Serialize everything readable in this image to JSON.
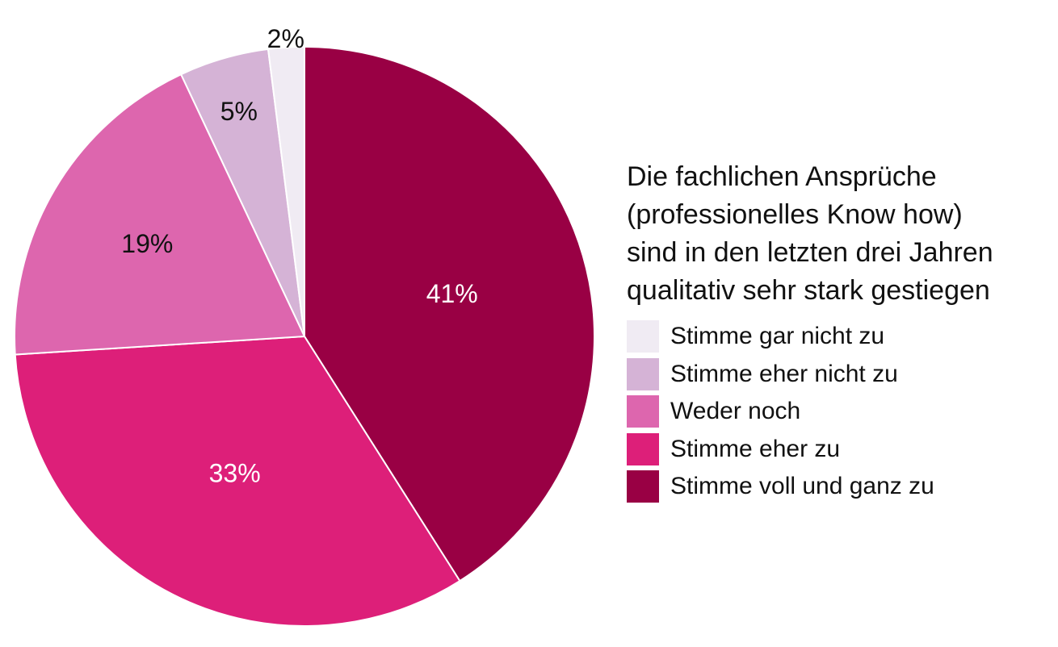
{
  "chart_data": {
    "type": "pie",
    "title_lines": [
      "Die fachlichen Ansprüche",
      "(professionelles Know how)",
      "sind in den letzten drei Jahren",
      "qualitativ sehr stark gestiegen"
    ],
    "slices": [
      {
        "label": "Stimme voll und ganz zu",
        "value": 41,
        "display": "41%",
        "color": "#990044",
        "text_color": "#ffffff"
      },
      {
        "label": "Stimme eher zu",
        "value": 33,
        "display": "33%",
        "color": "#dd1f79",
        "text_color": "#ffffff"
      },
      {
        "label": "Weder noch",
        "value": 19,
        "display": "19%",
        "color": "#dd66ae",
        "text_color": "#111111"
      },
      {
        "label": "Stimme eher nicht zu",
        "value": 5,
        "display": "5%",
        "color": "#d5b3d6",
        "text_color": "#111111"
      },
      {
        "label": "Stimme gar nicht zu",
        "value": 2,
        "display": "2%",
        "color": "#f0ebf3",
        "text_color": "#111111"
      }
    ],
    "legend_order": [
      "Stimme gar nicht zu",
      "Stimme eher nicht zu",
      "Weder noch",
      "Stimme eher zu",
      "Stimme voll und ganz zu"
    ],
    "legend_placement": "right"
  }
}
